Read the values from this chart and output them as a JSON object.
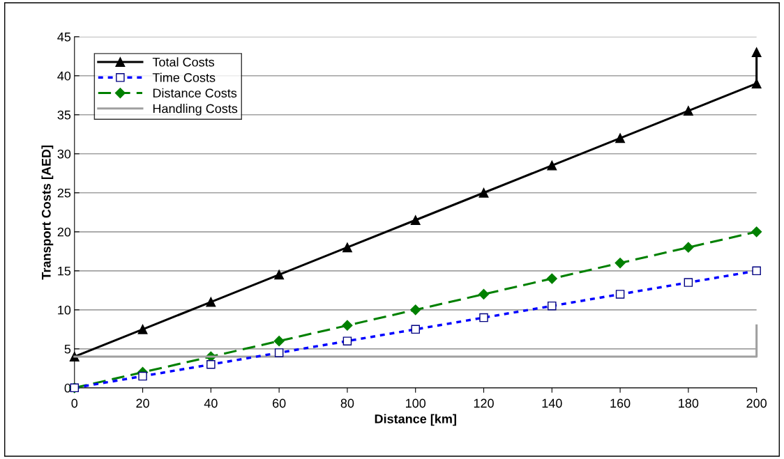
{
  "chart_data": {
    "type": "line",
    "xlabel": "Distance [km]",
    "ylabel": "Transport Costs [AED]",
    "xlim": [
      0,
      200
    ],
    "xticks": [
      0,
      20,
      40,
      60,
      80,
      100,
      120,
      140,
      160,
      180,
      200
    ],
    "ylim": [
      0,
      45
    ],
    "yticks": [
      0,
      5,
      10,
      15,
      20,
      25,
      30,
      35,
      40,
      45
    ],
    "grid": "y",
    "legend": "top left",
    "series": [
      {
        "name": "Total Costs",
        "color": "#000000",
        "marker": "triangle",
        "line_style": "solid",
        "x": [
          0,
          20,
          40,
          60,
          80,
          100,
          120,
          140,
          160,
          180,
          200,
          200
        ],
        "values": [
          4,
          7.5,
          11,
          14.5,
          18,
          21.5,
          25,
          28.5,
          32,
          35.5,
          39,
          43
        ]
      },
      {
        "name": "Time Costs",
        "color": "#0000ff",
        "marker": "square",
        "line_style": "dotted",
        "x": [
          0,
          20,
          40,
          60,
          80,
          100,
          120,
          140,
          160,
          180,
          200
        ],
        "values": [
          0,
          1.5,
          3,
          4.5,
          6,
          7.5,
          9,
          10.5,
          12,
          13.5,
          15
        ]
      },
      {
        "name": "Distance Costs",
        "color": "#008000",
        "marker": "diamond",
        "line_style": "dashed",
        "x": [
          0,
          20,
          40,
          60,
          80,
          100,
          120,
          140,
          160,
          180,
          200
        ],
        "values": [
          0,
          2,
          4,
          6,
          8,
          10,
          12,
          14,
          16,
          18,
          20
        ]
      },
      {
        "name": "Handling Costs",
        "color": "#a0a0a0",
        "marker": "none",
        "line_style": "solid",
        "x": [
          0,
          200,
          200
        ],
        "values": [
          4,
          4,
          8
        ]
      }
    ]
  }
}
